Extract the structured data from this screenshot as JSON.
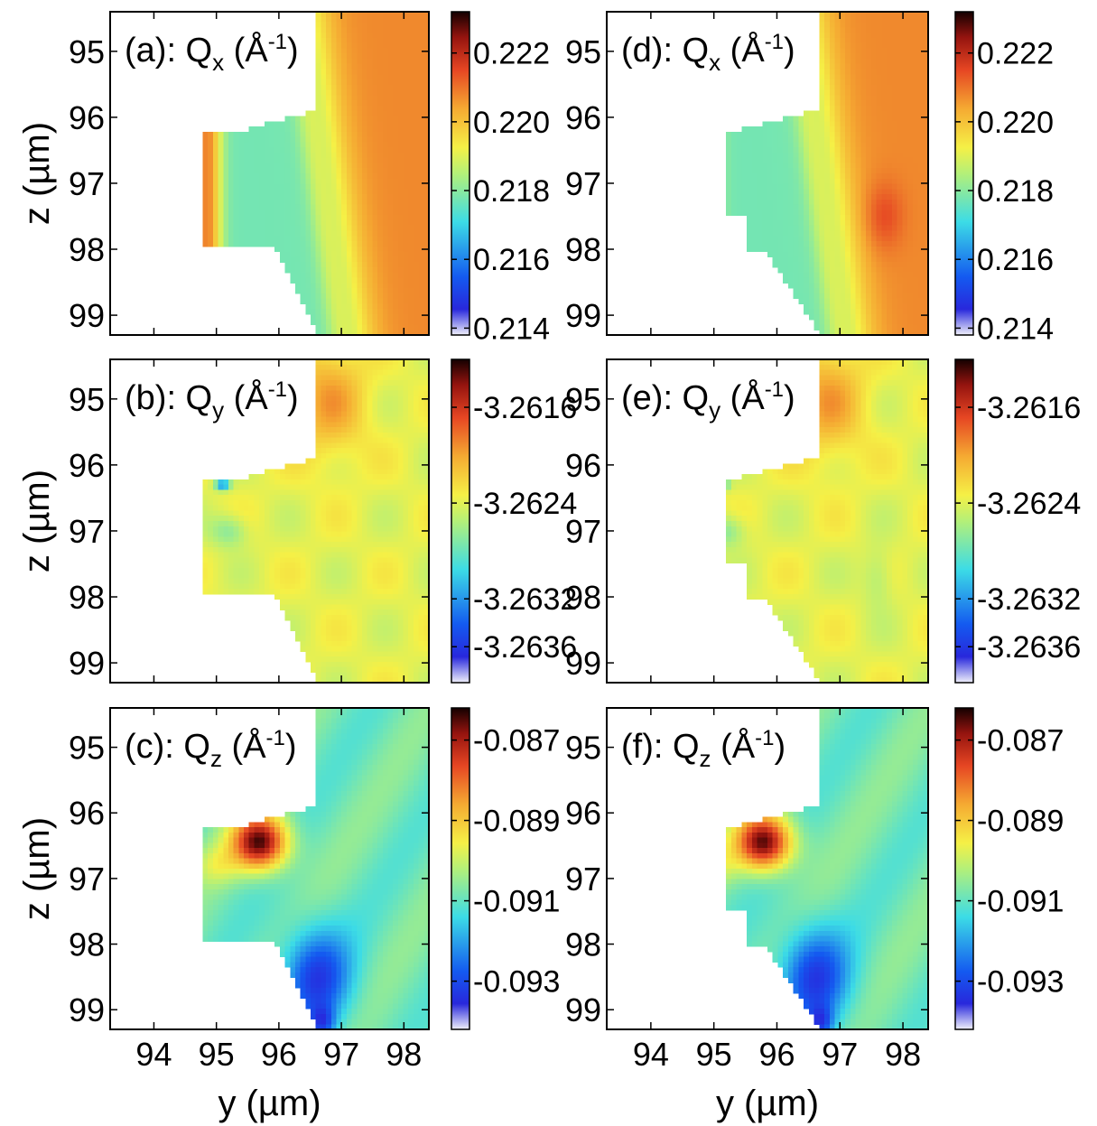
{
  "chart_data": {
    "type": "heatmap",
    "description_axes": {
      "xlabel": "y (µm)",
      "ylabel": "z (µm)",
      "x_ticks": [
        "94",
        "95",
        "96",
        "97",
        "98"
      ],
      "y_ticks": [
        "95",
        "96",
        "97",
        "98",
        "99"
      ],
      "xlim": [
        93.3,
        98.4
      ],
      "ylim": [
        94.4,
        99.3
      ]
    },
    "panels": [
      {
        "id": "a",
        "label": "(a): ",
        "quantity": "Q",
        "subscript": "x",
        "unit_open": " (Å",
        "unit_sup": "-1",
        "unit_close": ")",
        "colorbar": {
          "ticks": [
            "0.222",
            "0.220",
            "0.218",
            "0.216",
            "0.214"
          ],
          "range": [
            0.2138,
            0.2232
          ]
        },
        "field": "qx",
        "mask": "a"
      },
      {
        "id": "b",
        "label": "(b): ",
        "quantity": "Q",
        "subscript": "y",
        "unit_open": " (Å",
        "unit_sup": "-1",
        "unit_close": ")",
        "colorbar": {
          "ticks": [
            "-3.2616",
            "-3.2624",
            "-3.2632",
            "-3.2636"
          ],
          "range": [
            -3.2639,
            -3.2612
          ]
        },
        "field": "qy",
        "mask": "a"
      },
      {
        "id": "c",
        "label": "(c): ",
        "quantity": "Q",
        "subscript": "z",
        "unit_open": " (Å",
        "unit_sup": "-1",
        "unit_close": ")",
        "colorbar": {
          "ticks": [
            "-0.087",
            "-0.089",
            "-0.091",
            "-0.093"
          ],
          "range": [
            -0.0942,
            -0.0862
          ]
        },
        "field": "qz",
        "mask": "a"
      },
      {
        "id": "d",
        "label": "(d): ",
        "quantity": "Q",
        "subscript": "x",
        "unit_open": " (Å",
        "unit_sup": "-1",
        "unit_close": ")",
        "colorbar": {
          "ticks": [
            "0.222",
            "0.220",
            "0.218",
            "0.216",
            "0.214"
          ],
          "range": [
            0.2138,
            0.2232
          ]
        },
        "field": "qx",
        "mask": "d"
      },
      {
        "id": "e",
        "label": "(e): ",
        "quantity": "Q",
        "subscript": "y",
        "unit_open": " (Å",
        "unit_sup": "-1",
        "unit_close": ")",
        "colorbar": {
          "ticks": [
            "-3.2616",
            "-3.2624",
            "-3.2632",
            "-3.2636"
          ],
          "range": [
            -3.2639,
            -3.2612
          ]
        },
        "field": "qy",
        "mask": "d"
      },
      {
        "id": "f",
        "label": "(f): ",
        "quantity": "Q",
        "subscript": "z",
        "unit_open": " (Å",
        "unit_sup": "-1",
        "unit_close": ")",
        "colorbar": {
          "ticks": [
            "-0.087",
            "-0.089",
            "-0.091",
            "-0.093"
          ],
          "range": [
            -0.0942,
            -0.0862
          ]
        },
        "field": "qz",
        "mask": "d"
      }
    ],
    "colormap": "jet-like (white → blue → cyan → yellow → red → black)"
  }
}
